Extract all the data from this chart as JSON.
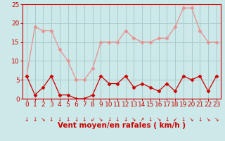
{
  "hours": [
    0,
    1,
    2,
    3,
    4,
    5,
    6,
    7,
    8,
    9,
    10,
    11,
    12,
    13,
    14,
    15,
    16,
    17,
    18,
    19,
    20,
    21,
    22,
    23
  ],
  "wind_avg": [
    6,
    1,
    3,
    6,
    1,
    1,
    0,
    0,
    1,
    6,
    4,
    4,
    6,
    3,
    4,
    3,
    2,
    4,
    2,
    6,
    5,
    6,
    2,
    6
  ],
  "wind_gust": [
    6,
    19,
    18,
    18,
    13,
    10,
    5,
    5,
    8,
    15,
    15,
    15,
    18,
    16,
    15,
    15,
    16,
    16,
    19,
    24,
    24,
    18,
    15,
    15
  ],
  "avg_color": "#cc0000",
  "gust_color": "#e89090",
  "bg_color": "#cce8e8",
  "grid_color": "#aacccc",
  "xlabel": "Vent moyen/en rafales ( km/h )",
  "ylim": [
    0,
    25
  ],
  "yticks": [
    0,
    5,
    10,
    15,
    20,
    25
  ],
  "tick_fontsize": 6.5,
  "xlabel_fontsize": 7.5,
  "arrow_symbols": [
    "↓",
    "↓",
    "↘",
    "↓",
    "↓",
    "↓",
    "↓",
    "↓",
    "↙",
    "↘",
    "↓",
    "↓",
    "↓",
    "↘",
    "↗",
    "↓",
    "↘",
    "↓",
    "↙",
    "↓",
    "↘",
    "↓",
    "↘",
    "↘"
  ]
}
